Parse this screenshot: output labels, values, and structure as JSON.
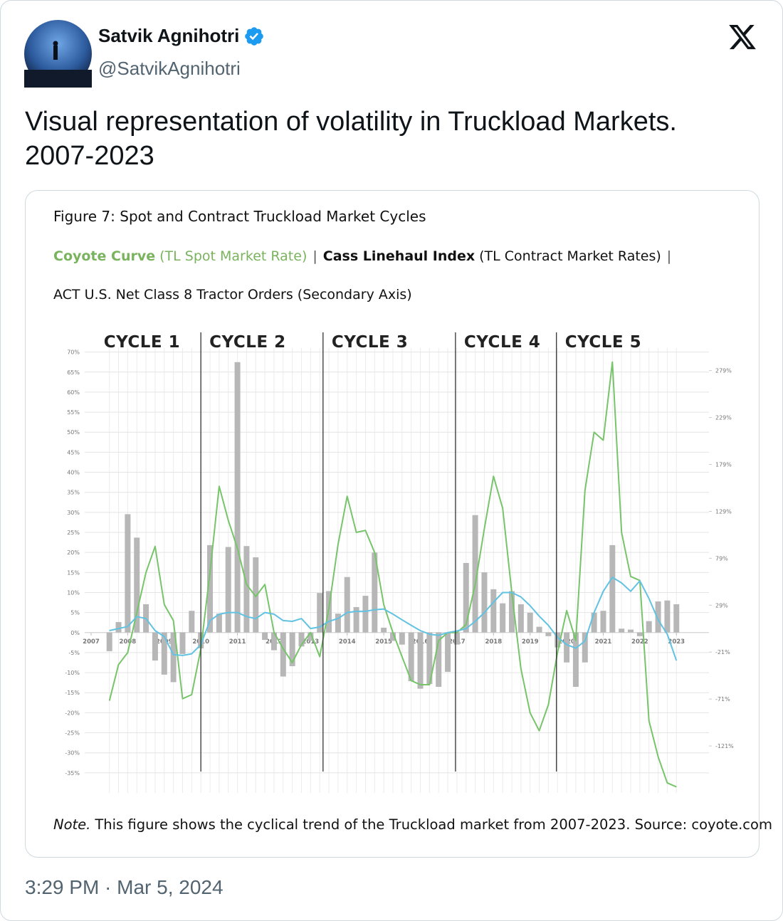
{
  "author": {
    "name": "Satvik Agnihotri",
    "handle": "@SatvikAgnihotri"
  },
  "tweet_text": "Visual representation of volatility in Truckload Markets.\n2007-2023",
  "timestamp": "3:29 PM · Mar 5, 2024",
  "chart_data": {
    "type": "combo",
    "title": "Figure 7: Spot and Contract Truckload Market Cycles",
    "legend_separator": "|",
    "note": {
      "label": "Note.",
      "text": "This figure shows the cyclical trend of the Truckload market from 2007-2023. Source: coyote.com"
    },
    "cycle_labels": [
      "CYCLE 1",
      "CYCLE 2",
      "CYCLE 3",
      "CYCLE 4",
      "CYCLE 5"
    ],
    "cycle_boundaries": [
      2010,
      2013.34,
      2016.96,
      2019.72
    ],
    "x": [
      2007.5,
      2007.75,
      2008,
      2008.25,
      2008.5,
      2008.75,
      2009,
      2009.25,
      2009.5,
      2009.75,
      2010,
      2010.25,
      2010.5,
      2010.75,
      2011,
      2011.25,
      2011.5,
      2011.75,
      2012,
      2012.25,
      2012.5,
      2012.75,
      2013,
      2013.25,
      2013.5,
      2013.75,
      2014,
      2014.25,
      2014.5,
      2014.75,
      2015,
      2015.25,
      2015.5,
      2015.75,
      2016,
      2016.25,
      2016.5,
      2016.75,
      2017,
      2017.25,
      2017.5,
      2017.75,
      2018,
      2018.25,
      2018.5,
      2018.75,
      2019,
      2019.25,
      2019.5,
      2019.75,
      2020,
      2020.25,
      2020.5,
      2020.75,
      2021,
      2021.25,
      2021.5,
      2021.75,
      2022,
      2022.25,
      2022.5,
      2022.75,
      2023
    ],
    "series": [
      {
        "name": "ACT U.S. Net Class 8 Tractor Orders (Secondary Axis)",
        "type": "bar",
        "axis": "y2",
        "color": "#b7b7b7",
        "values": [
          -20,
          11,
          126,
          101,
          30,
          -30,
          -45,
          -53,
          -23,
          23,
          -17,
          93,
          20,
          91,
          288,
          92,
          80,
          -8,
          -19,
          -47,
          -36,
          -15,
          -9,
          42,
          44,
          20,
          59,
          27,
          39,
          85,
          5,
          -9,
          -13,
          -52,
          -60,
          -55,
          -58,
          -42,
          -13,
          74,
          125,
          64,
          46,
          31,
          44,
          30,
          21,
          6,
          -4,
          -16,
          -32,
          -58,
          -32,
          21,
          23,
          93,
          4,
          3,
          -4,
          12,
          33,
          34,
          30
        ]
      },
      {
        "name": "Coyote Curve",
        "description": "(TL Spot Market Rate)",
        "type": "line",
        "color": "#77c46a",
        "values": [
          -17,
          -8,
          -5,
          5,
          15,
          21.5,
          7,
          3,
          -16.5,
          -15.5,
          -4,
          15,
          36.5,
          28,
          21,
          12,
          9,
          12,
          0,
          -4,
          -7.5,
          -3,
          0,
          -6,
          6,
          22,
          34,
          25,
          25.5,
          20,
          7,
          0,
          -6,
          -12,
          -13,
          -13,
          -2,
          0,
          0,
          2,
          12,
          26,
          39,
          31,
          10,
          -9,
          -20,
          -24.5,
          -18,
          -5,
          5.5,
          -2,
          35.5,
          50,
          48,
          67.5,
          25,
          14,
          13,
          -22,
          -31,
          -37.5,
          -38.5
        ]
      },
      {
        "name": "Cass Linehaul Index",
        "description": "(TL Contract Market Rates)",
        "type": "line",
        "color": "#62c2e2",
        "values": [
          0.5,
          1,
          1.5,
          4,
          3.5,
          0.5,
          -1,
          -5.5,
          -5.7,
          -5.3,
          -3,
          3,
          4.6,
          5,
          5,
          4,
          3.5,
          5,
          4.6,
          3,
          2.8,
          3.5,
          1,
          1.4,
          2.8,
          3.5,
          5,
          5.3,
          5.3,
          5.7,
          5.9,
          4.6,
          3.2,
          1.8,
          0.5,
          -0.4,
          -0.7,
          0,
          0.4,
          1,
          2.8,
          5,
          7.6,
          10,
          10,
          8.9,
          6.7,
          4.1,
          1.8,
          -1.2,
          -3,
          -3.9,
          -2.1,
          5,
          10.3,
          13.8,
          12.4,
          10.3,
          12.9,
          8.5,
          3.2,
          -0.4,
          -7
        ]
      }
    ],
    "xlim": [
      2006.825,
      2023.89
    ],
    "xticks": [
      2007,
      2008,
      2009,
      2010,
      2011,
      2012,
      2013,
      2014,
      2015,
      2016,
      2017,
      2018,
      2019,
      2020,
      2021,
      2022,
      2023
    ],
    "ylim": [
      -40,
      71
    ],
    "yticks": [
      {
        "value": -35,
        "label": "-35%"
      },
      {
        "value": -30,
        "label": "-30%"
      },
      {
        "value": -25,
        "label": "-25%"
      },
      {
        "value": -20,
        "label": "-20%"
      },
      {
        "value": -15,
        "label": "-15%"
      },
      {
        "value": -10,
        "label": "-10%"
      },
      {
        "value": -5,
        "label": "-5%"
      },
      {
        "value": 0,
        "label": "0%"
      },
      {
        "value": 5,
        "label": "5%"
      },
      {
        "value": 10,
        "label": "10%"
      },
      {
        "value": 15,
        "label": "15%"
      },
      {
        "value": 20,
        "label": "20%"
      },
      {
        "value": 25,
        "label": "25%"
      },
      {
        "value": 30,
        "label": "30%"
      },
      {
        "value": 35,
        "label": "35%"
      },
      {
        "value": 40,
        "label": "40%"
      },
      {
        "value": 45,
        "label": "45%"
      },
      {
        "value": 50,
        "label": "50%"
      },
      {
        "value": 55,
        "label": "55%"
      },
      {
        "value": 60,
        "label": "60%"
      },
      {
        "value": 65,
        "label": "65%"
      },
      {
        "value": 70,
        "label": "70%"
      }
    ],
    "y2lim": [
      -171,
      303
    ],
    "y2ticks": [
      {
        "value": -121,
        "label": "-121%"
      },
      {
        "value": -71,
        "label": "-71%"
      },
      {
        "value": -21,
        "label": "-21%"
      },
      {
        "value": 29,
        "label": "29%"
      },
      {
        "value": 79,
        "label": "79%"
      },
      {
        "value": 129,
        "label": "129%"
      },
      {
        "value": 179,
        "label": "179%"
      },
      {
        "value": 229,
        "label": "229%"
      },
      {
        "value": 279,
        "label": "279%"
      }
    ],
    "grid": true
  }
}
